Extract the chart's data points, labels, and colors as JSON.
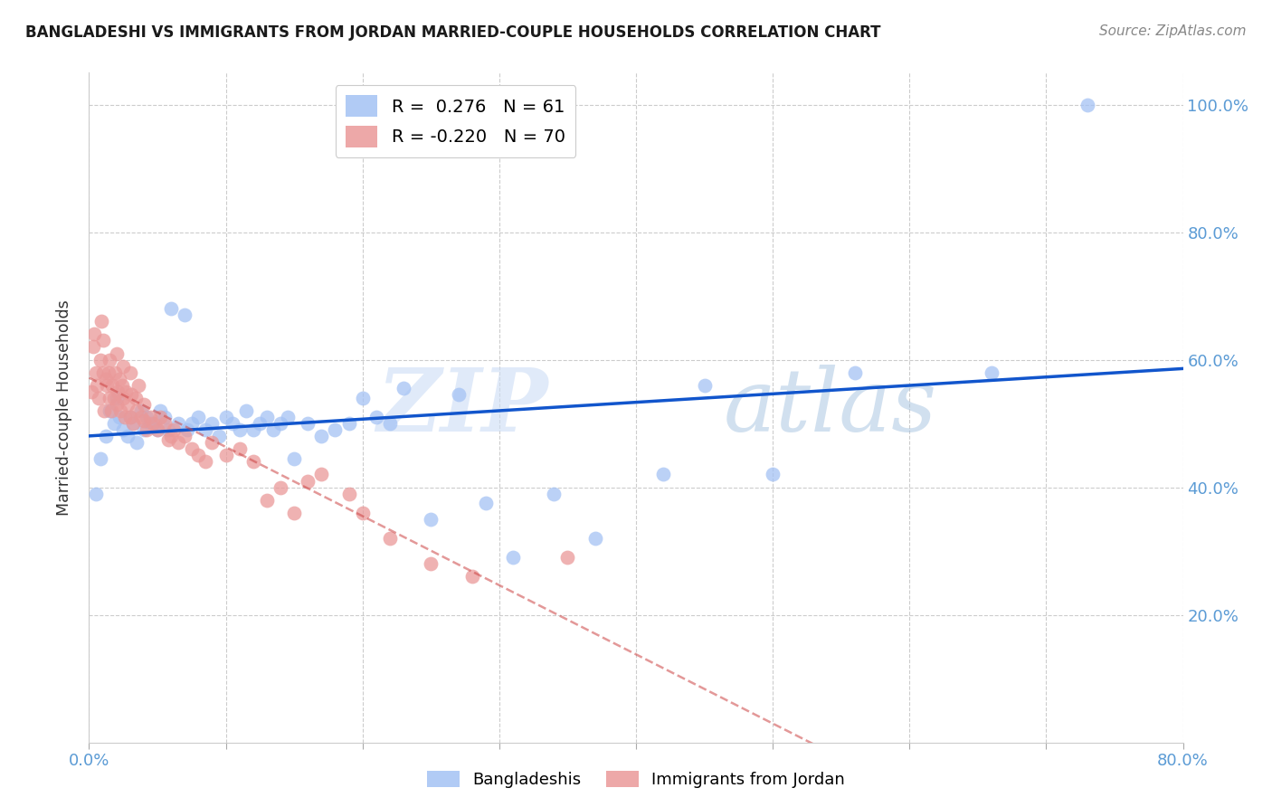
{
  "title": "BANGLADESHI VS IMMIGRANTS FROM JORDAN MARRIED-COUPLE HOUSEHOLDS CORRELATION CHART",
  "source": "Source: ZipAtlas.com",
  "ylabel_label": "Married-couple Households",
  "xlim": [
    0.0,
    0.8
  ],
  "ylim": [
    0.0,
    1.05
  ],
  "x_ticks": [
    0.0,
    0.1,
    0.2,
    0.3,
    0.4,
    0.5,
    0.6,
    0.7,
    0.8
  ],
  "y_ticks": [
    0.0,
    0.2,
    0.4,
    0.6,
    0.8,
    1.0
  ],
  "blue_R": 0.276,
  "blue_N": 61,
  "pink_R": -0.22,
  "pink_N": 70,
  "blue_color": "#a4c2f4",
  "pink_color": "#ea9999",
  "blue_line_color": "#1155cc",
  "pink_line_color": "#cc4444",
  "watermark_zip": "ZIP",
  "watermark_atlas": "atlas",
  "blue_scatter_x": [
    0.005,
    0.008,
    0.012,
    0.015,
    0.018,
    0.02,
    0.022,
    0.025,
    0.028,
    0.03,
    0.032,
    0.035,
    0.038,
    0.04,
    0.042,
    0.045,
    0.048,
    0.05,
    0.052,
    0.055,
    0.058,
    0.06,
    0.065,
    0.07,
    0.072,
    0.075,
    0.08,
    0.085,
    0.09,
    0.095,
    0.1,
    0.105,
    0.11,
    0.115,
    0.12,
    0.125,
    0.13,
    0.135,
    0.14,
    0.145,
    0.15,
    0.16,
    0.17,
    0.18,
    0.19,
    0.2,
    0.21,
    0.22,
    0.23,
    0.25,
    0.27,
    0.29,
    0.31,
    0.34,
    0.37,
    0.42,
    0.45,
    0.5,
    0.56,
    0.66,
    0.73
  ],
  "blue_scatter_y": [
    0.39,
    0.445,
    0.48,
    0.52,
    0.5,
    0.54,
    0.51,
    0.49,
    0.48,
    0.51,
    0.5,
    0.47,
    0.52,
    0.49,
    0.51,
    0.5,
    0.5,
    0.49,
    0.52,
    0.51,
    0.49,
    0.68,
    0.5,
    0.67,
    0.49,
    0.5,
    0.51,
    0.49,
    0.5,
    0.48,
    0.51,
    0.5,
    0.49,
    0.52,
    0.49,
    0.5,
    0.51,
    0.49,
    0.5,
    0.51,
    0.445,
    0.5,
    0.48,
    0.49,
    0.5,
    0.54,
    0.51,
    0.5,
    0.555,
    0.35,
    0.545,
    0.375,
    0.29,
    0.39,
    0.32,
    0.42,
    0.56,
    0.42,
    0.58,
    0.58,
    1.0
  ],
  "pink_scatter_x": [
    0.002,
    0.003,
    0.004,
    0.005,
    0.006,
    0.007,
    0.008,
    0.009,
    0.01,
    0.01,
    0.011,
    0.012,
    0.013,
    0.014,
    0.015,
    0.015,
    0.016,
    0.017,
    0.018,
    0.019,
    0.02,
    0.02,
    0.021,
    0.022,
    0.023,
    0.024,
    0.025,
    0.025,
    0.026,
    0.027,
    0.028,
    0.03,
    0.03,
    0.031,
    0.032,
    0.034,
    0.035,
    0.036,
    0.038,
    0.04,
    0.04,
    0.042,
    0.045,
    0.047,
    0.05,
    0.052,
    0.055,
    0.058,
    0.06,
    0.062,
    0.065,
    0.07,
    0.075,
    0.08,
    0.085,
    0.09,
    0.1,
    0.11,
    0.12,
    0.13,
    0.14,
    0.15,
    0.16,
    0.17,
    0.19,
    0.2,
    0.22,
    0.25,
    0.28,
    0.35
  ],
  "pink_scatter_y": [
    0.55,
    0.62,
    0.64,
    0.58,
    0.56,
    0.54,
    0.6,
    0.66,
    0.58,
    0.63,
    0.52,
    0.57,
    0.56,
    0.58,
    0.54,
    0.6,
    0.52,
    0.56,
    0.54,
    0.58,
    0.53,
    0.61,
    0.55,
    0.57,
    0.52,
    0.56,
    0.54,
    0.59,
    0.51,
    0.55,
    0.53,
    0.58,
    0.51,
    0.545,
    0.5,
    0.54,
    0.52,
    0.56,
    0.51,
    0.505,
    0.53,
    0.49,
    0.51,
    0.5,
    0.49,
    0.51,
    0.5,
    0.475,
    0.48,
    0.49,
    0.47,
    0.48,
    0.46,
    0.45,
    0.44,
    0.47,
    0.45,
    0.46,
    0.44,
    0.38,
    0.4,
    0.36,
    0.41,
    0.42,
    0.39,
    0.36,
    0.32,
    0.28,
    0.26,
    0.29
  ]
}
